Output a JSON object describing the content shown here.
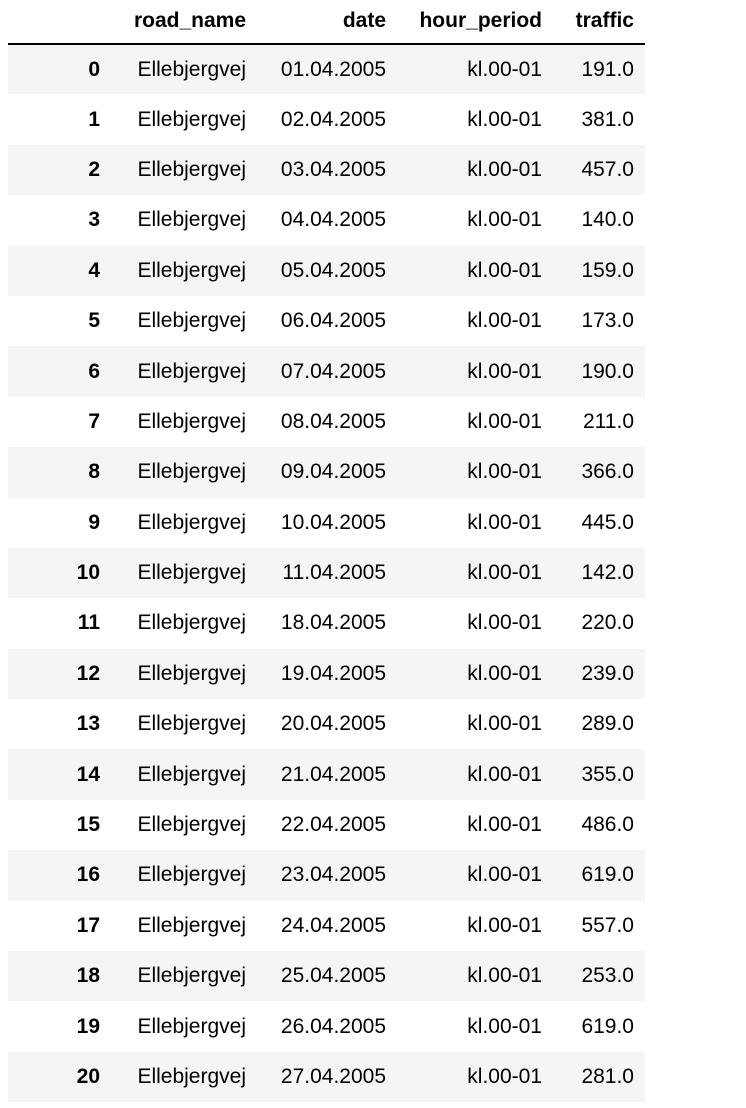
{
  "table": {
    "index_header": "",
    "columns": [
      "road_name",
      "date",
      "hour_period",
      "traffic"
    ],
    "rows": [
      {
        "index": "0",
        "road_name": "Ellebjergvej",
        "date": "01.04.2005",
        "hour_period": "kl.00-01",
        "traffic": "191.0"
      },
      {
        "index": "1",
        "road_name": "Ellebjergvej",
        "date": "02.04.2005",
        "hour_period": "kl.00-01",
        "traffic": "381.0"
      },
      {
        "index": "2",
        "road_name": "Ellebjergvej",
        "date": "03.04.2005",
        "hour_period": "kl.00-01",
        "traffic": "457.0"
      },
      {
        "index": "3",
        "road_name": "Ellebjergvej",
        "date": "04.04.2005",
        "hour_period": "kl.00-01",
        "traffic": "140.0"
      },
      {
        "index": "4",
        "road_name": "Ellebjergvej",
        "date": "05.04.2005",
        "hour_period": "kl.00-01",
        "traffic": "159.0"
      },
      {
        "index": "5",
        "road_name": "Ellebjergvej",
        "date": "06.04.2005",
        "hour_period": "kl.00-01",
        "traffic": "173.0"
      },
      {
        "index": "6",
        "road_name": "Ellebjergvej",
        "date": "07.04.2005",
        "hour_period": "kl.00-01",
        "traffic": "190.0"
      },
      {
        "index": "7",
        "road_name": "Ellebjergvej",
        "date": "08.04.2005",
        "hour_period": "kl.00-01",
        "traffic": "211.0"
      },
      {
        "index": "8",
        "road_name": "Ellebjergvej",
        "date": "09.04.2005",
        "hour_period": "kl.00-01",
        "traffic": "366.0"
      },
      {
        "index": "9",
        "road_name": "Ellebjergvej",
        "date": "10.04.2005",
        "hour_period": "kl.00-01",
        "traffic": "445.0"
      },
      {
        "index": "10",
        "road_name": "Ellebjergvej",
        "date": "11.04.2005",
        "hour_period": "kl.00-01",
        "traffic": "142.0"
      },
      {
        "index": "11",
        "road_name": "Ellebjergvej",
        "date": "18.04.2005",
        "hour_period": "kl.00-01",
        "traffic": "220.0"
      },
      {
        "index": "12",
        "road_name": "Ellebjergvej",
        "date": "19.04.2005",
        "hour_period": "kl.00-01",
        "traffic": "239.0"
      },
      {
        "index": "13",
        "road_name": "Ellebjergvej",
        "date": "20.04.2005",
        "hour_period": "kl.00-01",
        "traffic": "289.0"
      },
      {
        "index": "14",
        "road_name": "Ellebjergvej",
        "date": "21.04.2005",
        "hour_period": "kl.00-01",
        "traffic": "355.0"
      },
      {
        "index": "15",
        "road_name": "Ellebjergvej",
        "date": "22.04.2005",
        "hour_period": "kl.00-01",
        "traffic": "486.0"
      },
      {
        "index": "16",
        "road_name": "Ellebjergvej",
        "date": "23.04.2005",
        "hour_period": "kl.00-01",
        "traffic": "619.0"
      },
      {
        "index": "17",
        "road_name": "Ellebjergvej",
        "date": "24.04.2005",
        "hour_period": "kl.00-01",
        "traffic": "557.0"
      },
      {
        "index": "18",
        "road_name": "Ellebjergvej",
        "date": "25.04.2005",
        "hour_period": "kl.00-01",
        "traffic": "253.0"
      },
      {
        "index": "19",
        "road_name": "Ellebjergvej",
        "date": "26.04.2005",
        "hour_period": "kl.00-01",
        "traffic": "619.0"
      },
      {
        "index": "20",
        "road_name": "Ellebjergvej",
        "date": "27.04.2005",
        "hour_period": "kl.00-01",
        "traffic": "281.0"
      }
    ]
  },
  "colors": {
    "stripe": "#f5f5f5",
    "background": "#ffffff",
    "header_rule": "#000000",
    "text": "#000000"
  }
}
